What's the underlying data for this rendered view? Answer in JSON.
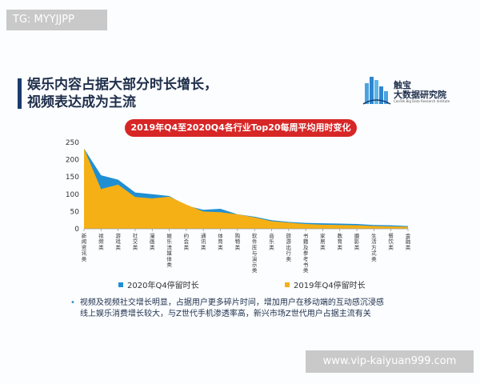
{
  "watermark_top": "TG: MYYJJPP",
  "watermark_bottom": "www.vip-kaiyuan999.com",
  "header": {
    "title_line1": "娱乐内容占据大部分时长增长，",
    "title_line2": "视频表达成为主流"
  },
  "brand": {
    "name_line1": "触宝",
    "name_line2": "大数据研究院",
    "subtitle": "CooTek Big Data Research Institute"
  },
  "chart_data": {
    "type": "area",
    "title": "2019年Q4至2020Q4各行业Top20每周平均用时变化",
    "categories": [
      "新闻资讯类",
      "视频类",
      "游戏类",
      "社交类",
      "漫画类",
      "娱乐流媒体类",
      "约会类",
      "通讯类",
      "体育类",
      "购物类",
      "软件库与演示类",
      "音乐类",
      "旅游出行类",
      "书籍及参考书类",
      "家居类",
      "教育类",
      "摄影类",
      "生活方式类",
      "餐饮类",
      "金融类"
    ],
    "series": [
      {
        "name": "2020年Q4停留时长",
        "values": [
          232,
          155,
          142,
          105,
          100,
          95,
          67,
          55,
          58,
          42,
          35,
          25,
          20,
          17,
          16,
          15,
          14,
          11,
          10,
          8
        ]
      },
      {
        "name": "2019年Q4停留时长",
        "values": [
          232,
          115,
          128,
          92,
          88,
          93,
          70,
          50,
          48,
          42,
          33,
          22,
          18,
          14,
          12,
          11,
          10,
          8,
          7,
          6
        ]
      }
    ],
    "ylim": [
      0,
      250
    ],
    "yticks": [
      0,
      50,
      100,
      150,
      200,
      250
    ],
    "colors": {
      "2020": "#1f8fd4",
      "2019": "#f5b016"
    },
    "legend_position": "bottom"
  },
  "notes": [
    "视频及视频社交增长明显，占据用户更多碎片时间，增加用户在移动端的互动感沉浸感",
    "线上娱乐消费增长较大，与Z世代手机渗透率高，新兴市场Z世代用户占据主流有关"
  ]
}
